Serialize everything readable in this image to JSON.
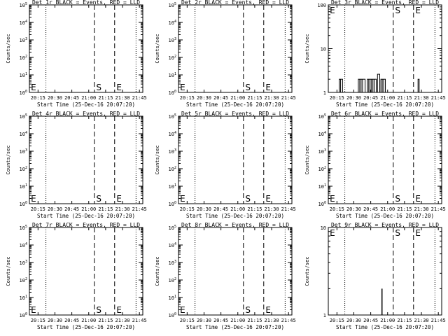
{
  "chart_data": [
    {
      "type": "line",
      "title": "Det 1r BLACK = Events, RED = LLD",
      "ylabel": "Counts/sec",
      "xlabel": "Start Time (25-Dec-16 20:07:20)",
      "xlim": [
        "20:07:20",
        "21:48:00"
      ],
      "x_ticks": [
        "20:15",
        "20:30",
        "20:45",
        "21:00",
        "21:15",
        "21:30",
        "21:45"
      ],
      "yscale": "log",
      "ylim": [
        1,
        100000
      ],
      "y_ticks": [
        "10^0",
        "10^1",
        "10^2",
        "10^3",
        "10^4",
        "10^5"
      ],
      "dotted_lines": [
        "20:22",
        "21:42"
      ],
      "dashed_lines": [
        "21:05",
        "21:23"
      ],
      "markers": [
        {
          "label": "E",
          "x": "20:08"
        },
        {
          "label": "S",
          "x": "21:06"
        },
        {
          "label": "E",
          "x": "21:24"
        }
      ],
      "series": []
    },
    {
      "type": "line",
      "title": "Det 2r BLACK = Events, RED = LLD",
      "ylabel": "Counts/sec",
      "xlabel": "Start Time (25-Dec-16 20:07:20)",
      "xlim": [
        "20:07:20",
        "21:48:00"
      ],
      "x_ticks": [
        "20:15",
        "20:30",
        "20:45",
        "21:00",
        "21:15",
        "21:30",
        "21:45"
      ],
      "yscale": "log",
      "ylim": [
        1,
        100000
      ],
      "y_ticks": [
        "10^0",
        "10^1",
        "10^2",
        "10^3",
        "10^4",
        "10^5"
      ],
      "dotted_lines": [
        "20:22",
        "21:42"
      ],
      "dashed_lines": [
        "21:05",
        "21:23"
      ],
      "markers": [
        {
          "label": "E",
          "x": "20:08"
        },
        {
          "label": "S",
          "x": "21:06"
        },
        {
          "label": "E",
          "x": "21:24"
        }
      ],
      "series": []
    },
    {
      "type": "line",
      "title": "Det 3r BLACK = Events, RED = LLD",
      "ylabel": "Counts/sec",
      "xlabel": "Start Time (25-Dec-16 20:07:20)",
      "xlim": [
        "20:07:20",
        "21:48:00"
      ],
      "x_ticks": [
        "20:15",
        "20:30",
        "20:45",
        "21:00",
        "21:15",
        "21:30",
        "21:45"
      ],
      "yscale": "log",
      "ylim": [
        1,
        100
      ],
      "y_ticks": [
        "1",
        "10",
        "100"
      ],
      "dotted_lines": [
        "20:22",
        "21:42"
      ],
      "dashed_lines": [
        "21:05",
        "21:23"
      ],
      "markers": [
        {
          "label": "E",
          "x": "20:08"
        },
        {
          "label": "S",
          "x": "21:06"
        },
        {
          "label": "E",
          "x": "21:24"
        }
      ],
      "series": [
        {
          "color": "#000000",
          "bursts": [
            {
              "from": "20:17",
              "to": "20:20",
              "y": 2
            },
            {
              "from": "20:34",
              "to": "20:40",
              "y": 2
            },
            {
              "from": "20:42",
              "to": "20:50",
              "y": 2
            },
            {
              "from": "20:51",
              "to": "20:53",
              "y": 2.6
            },
            {
              "from": "20:54",
              "to": "20:58",
              "y": 2
            },
            {
              "from": "21:27",
              "to": "21:28",
              "y": 2
            }
          ]
        }
      ]
    },
    {
      "type": "line",
      "title": "Det 4r BLACK = Events, RED = LLD",
      "ylabel": "Counts/sec",
      "xlabel": "Start Time (25-Dec-16 20:07:20)",
      "xlim": [
        "20:07:20",
        "21:48:00"
      ],
      "x_ticks": [
        "20:15",
        "20:30",
        "20:45",
        "21:00",
        "21:15",
        "21:30",
        "21:45"
      ],
      "yscale": "log",
      "ylim": [
        1,
        100000
      ],
      "y_ticks": [
        "10^0",
        "10^1",
        "10^2",
        "10^3",
        "10^4",
        "10^5"
      ],
      "dotted_lines": [
        "20:22",
        "21:42"
      ],
      "dashed_lines": [
        "21:05",
        "21:23"
      ],
      "markers": [
        {
          "label": "E",
          "x": "20:08"
        },
        {
          "label": "S",
          "x": "21:06"
        },
        {
          "label": "E",
          "x": "21:24"
        }
      ],
      "series": []
    },
    {
      "type": "line",
      "title": "Det 5r BLACK = Events, RED = LLD",
      "ylabel": "Counts/sec",
      "xlabel": "Start Time (25-Dec-16 20:07:20)",
      "xlim": [
        "20:07:20",
        "21:48:00"
      ],
      "x_ticks": [
        "20:15",
        "20:30",
        "20:45",
        "21:00",
        "21:15",
        "21:30",
        "21:45"
      ],
      "yscale": "log",
      "ylim": [
        1,
        100000
      ],
      "y_ticks": [
        "10^0",
        "10^1",
        "10^2",
        "10^3",
        "10^4",
        "10^5"
      ],
      "dotted_lines": [
        "20:22",
        "21:42"
      ],
      "dashed_lines": [
        "21:05",
        "21:23"
      ],
      "markers": [
        {
          "label": "E",
          "x": "20:08"
        },
        {
          "label": "S",
          "x": "21:06"
        },
        {
          "label": "E",
          "x": "21:24"
        }
      ],
      "series": []
    },
    {
      "type": "line",
      "title": "Det 6r BLACK = Events, RED = LLD",
      "ylabel": "Counts/sec",
      "xlabel": "Start Time (25-Dec-16 20:07:20)",
      "xlim": [
        "20:07:20",
        "21:48:00"
      ],
      "x_ticks": [
        "20:15",
        "20:30",
        "20:45",
        "21:00",
        "21:15",
        "21:30",
        "21:45"
      ],
      "yscale": "log",
      "ylim": [
        1,
        100000
      ],
      "y_ticks": [
        "10^0",
        "10^1",
        "10^2",
        "10^3",
        "10^4",
        "10^5"
      ],
      "dotted_lines": [
        "20:22",
        "21:42"
      ],
      "dashed_lines": [
        "21:05",
        "21:23"
      ],
      "markers": [
        {
          "label": "E",
          "x": "20:08"
        },
        {
          "label": "S",
          "x": "21:06"
        },
        {
          "label": "E",
          "x": "21:24"
        }
      ],
      "series": []
    },
    {
      "type": "line",
      "title": "Det 7r BLACK = Events, RED = LLD",
      "ylabel": "Counts/sec",
      "xlabel": "Start Time (25-Dec-16 20:07:20)",
      "xlim": [
        "20:07:20",
        "21:48:00"
      ],
      "x_ticks": [
        "20:15",
        "20:30",
        "20:45",
        "21:00",
        "21:15",
        "21:30",
        "21:45"
      ],
      "yscale": "log",
      "ylim": [
        1,
        100000
      ],
      "y_ticks": [
        "10^0",
        "10^1",
        "10^2",
        "10^3",
        "10^4",
        "10^5"
      ],
      "dotted_lines": [
        "20:22",
        "21:42"
      ],
      "dashed_lines": [
        "21:05",
        "21:23"
      ],
      "markers": [
        {
          "label": "E",
          "x": "20:08"
        },
        {
          "label": "S",
          "x": "21:06"
        },
        {
          "label": "E",
          "x": "21:24"
        }
      ],
      "series": []
    },
    {
      "type": "line",
      "title": "Det 8r BLACK = Events, RED = LLD",
      "ylabel": "Counts/sec",
      "xlabel": "Start Time (25-Dec-16 20:07:20)",
      "xlim": [
        "20:07:20",
        "21:48:00"
      ],
      "x_ticks": [
        "20:15",
        "20:30",
        "20:45",
        "21:00",
        "21:15",
        "21:30",
        "21:45"
      ],
      "yscale": "log",
      "ylim": [
        1,
        100000
      ],
      "y_ticks": [
        "10^0",
        "10^1",
        "10^2",
        "10^3",
        "10^4",
        "10^5"
      ],
      "dotted_lines": [
        "20:22",
        "21:42"
      ],
      "dashed_lines": [
        "21:05",
        "21:23"
      ],
      "markers": [
        {
          "label": "E",
          "x": "20:08"
        },
        {
          "label": "S",
          "x": "21:06"
        },
        {
          "label": "E",
          "x": "21:24"
        }
      ],
      "series": []
    },
    {
      "type": "line",
      "title": "Det 9r BLACK = Events, RED = LLD",
      "ylabel": "Counts/sec",
      "xlabel": "Start Time (25-Dec-16 20:07:20)",
      "xlim": [
        "20:07:20",
        "21:48:00"
      ],
      "x_ticks": [
        "20:15",
        "20:30",
        "20:45",
        "21:00",
        "21:15",
        "21:30",
        "21:45"
      ],
      "yscale": "log",
      "ylim": [
        1,
        10
      ],
      "y_ticks": [
        "1",
        "10"
      ],
      "dotted_lines": [
        "20:22",
        "21:42"
      ],
      "dashed_lines": [
        "21:05",
        "21:23"
      ],
      "markers": [
        {
          "label": "E",
          "x": "20:08"
        },
        {
          "label": "S",
          "x": "21:06"
        },
        {
          "label": "E",
          "x": "21:24"
        }
      ],
      "series": [
        {
          "color": "#000000",
          "spikes": [
            {
              "x": "20:55",
              "y": 2
            }
          ]
        }
      ]
    }
  ]
}
